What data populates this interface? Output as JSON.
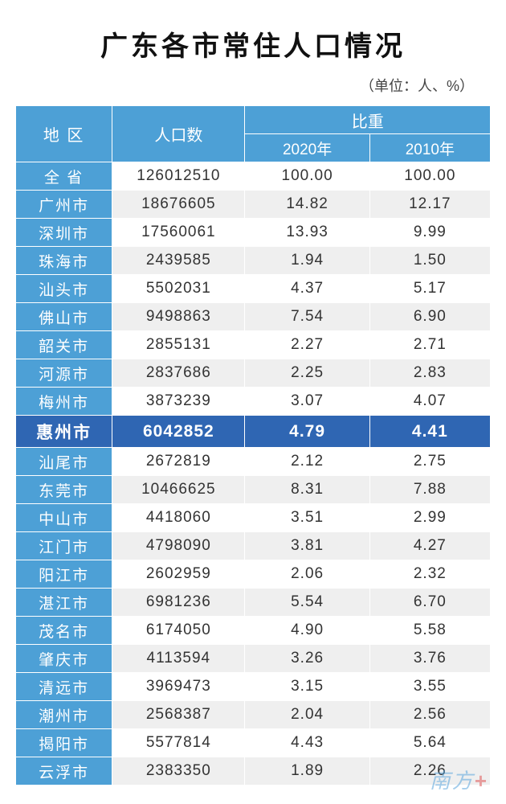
{
  "title": "广东各市常住人口情况",
  "unit": "（单位：人、%）",
  "headers": {
    "region": "地 区",
    "population": "人口数",
    "proportion": "比重",
    "y2020": "2020年",
    "y2010": "2010年"
  },
  "colors": {
    "header_bg": "#4da0d6",
    "header_text": "#ffffff",
    "stripe_even": "#efefef",
    "stripe_odd": "#ffffff",
    "highlight_bg": "#2f66b3",
    "highlight_text": "#ffffff",
    "border": "#ffffff"
  },
  "highlight_index": 9,
  "rows": [
    {
      "region": "全 省",
      "pop": "126012510",
      "p2020": "100.00",
      "p2010": "100.00"
    },
    {
      "region": "广州市",
      "pop": "18676605",
      "p2020": "14.82",
      "p2010": "12.17"
    },
    {
      "region": "深圳市",
      "pop": "17560061",
      "p2020": "13.93",
      "p2010": "9.99"
    },
    {
      "region": "珠海市",
      "pop": "2439585",
      "p2020": "1.94",
      "p2010": "1.50"
    },
    {
      "region": "汕头市",
      "pop": "5502031",
      "p2020": "4.37",
      "p2010": "5.17"
    },
    {
      "region": "佛山市",
      "pop": "9498863",
      "p2020": "7.54",
      "p2010": "6.90"
    },
    {
      "region": "韶关市",
      "pop": "2855131",
      "p2020": "2.27",
      "p2010": "2.71"
    },
    {
      "region": "河源市",
      "pop": "2837686",
      "p2020": "2.25",
      "p2010": "2.83"
    },
    {
      "region": "梅州市",
      "pop": "3873239",
      "p2020": "3.07",
      "p2010": "4.07"
    },
    {
      "region": "惠州市",
      "pop": "6042852",
      "p2020": "4.79",
      "p2010": "4.41"
    },
    {
      "region": "汕尾市",
      "pop": "2672819",
      "p2020": "2.12",
      "p2010": "2.75"
    },
    {
      "region": "东莞市",
      "pop": "10466625",
      "p2020": "8.31",
      "p2010": "7.88"
    },
    {
      "region": "中山市",
      "pop": "4418060",
      "p2020": "3.51",
      "p2010": "2.99"
    },
    {
      "region": "江门市",
      "pop": "4798090",
      "p2020": "3.81",
      "p2010": "4.27"
    },
    {
      "region": "阳江市",
      "pop": "2602959",
      "p2020": "2.06",
      "p2010": "2.32"
    },
    {
      "region": "湛江市",
      "pop": "6981236",
      "p2020": "5.54",
      "p2010": "6.70"
    },
    {
      "region": "茂名市",
      "pop": "6174050",
      "p2020": "4.90",
      "p2010": "5.58"
    },
    {
      "region": "肇庆市",
      "pop": "4113594",
      "p2020": "3.26",
      "p2010": "3.76"
    },
    {
      "region": "清远市",
      "pop": "3969473",
      "p2020": "3.15",
      "p2010": "3.55"
    },
    {
      "region": "潮州市",
      "pop": "2568387",
      "p2020": "2.04",
      "p2010": "2.56"
    },
    {
      "region": "揭阳市",
      "pop": "5577814",
      "p2020": "4.43",
      "p2010": "5.64"
    },
    {
      "region": "云浮市",
      "pop": "2383350",
      "p2020": "1.89",
      "p2010": "2.26"
    }
  ],
  "watermark": {
    "text": "南方",
    "plus": "+"
  }
}
